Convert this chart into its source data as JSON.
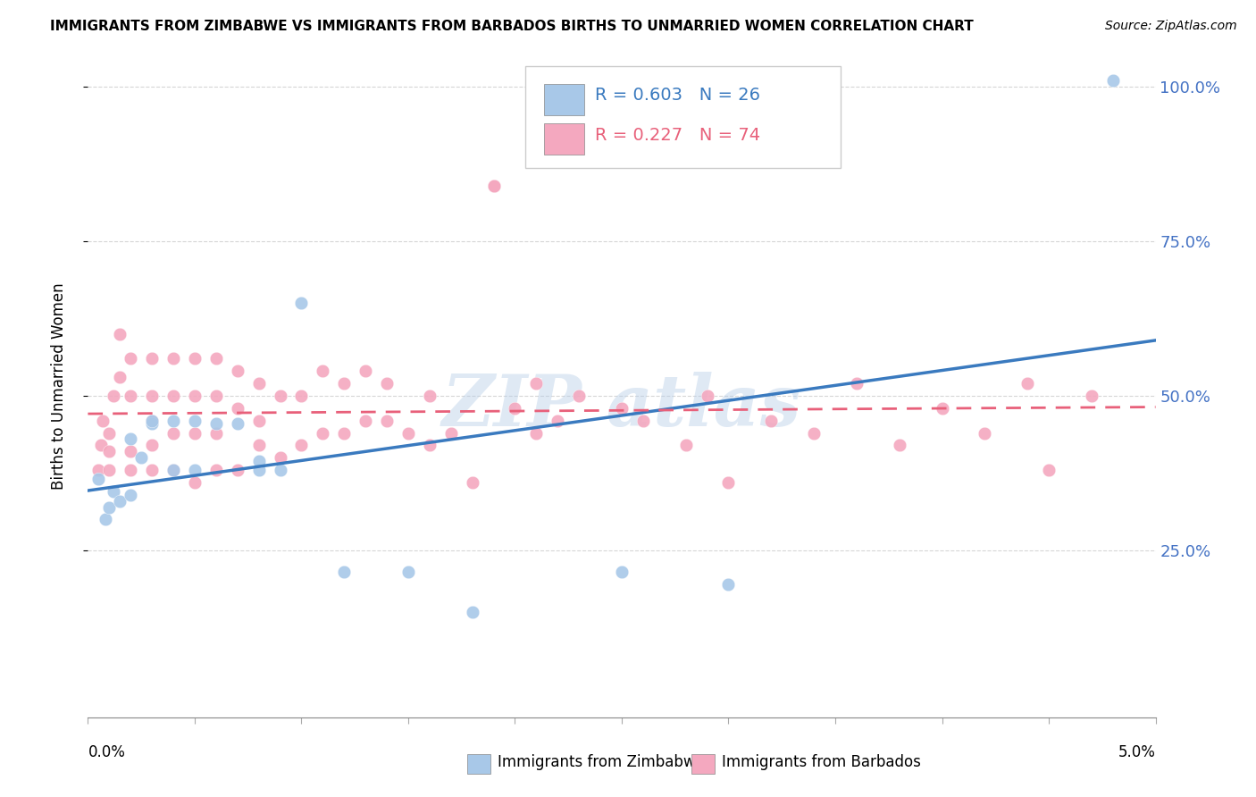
{
  "title": "IMMIGRANTS FROM ZIMBABWE VS IMMIGRANTS FROM BARBADOS BIRTHS TO UNMARRIED WOMEN CORRELATION CHART",
  "source": "Source: ZipAtlas.com",
  "ylabel": "Births to Unmarried Women",
  "r_zimbabwe": 0.603,
  "n_zimbabwe": 26,
  "r_barbados": 0.227,
  "n_barbados": 74,
  "color_zimbabwe": "#a8c8e8",
  "color_barbados": "#f4a8bf",
  "trendline_zimbabwe_color": "#3a7abf",
  "trendline_barbados_color": "#e8607a",
  "ytick_values": [
    0.25,
    0.5,
    0.75,
    1.0
  ],
  "xmin": 0.0,
  "xmax": 0.05,
  "ymin": 0.0,
  "ymax": 1.05,
  "zim_x": [
    0.0005,
    0.0008,
    0.001,
    0.0012,
    0.0015,
    0.002,
    0.002,
    0.0025,
    0.003,
    0.003,
    0.004,
    0.004,
    0.005,
    0.005,
    0.006,
    0.007,
    0.008,
    0.008,
    0.009,
    0.01,
    0.012,
    0.015,
    0.018,
    0.025,
    0.03,
    0.048
  ],
  "zim_y": [
    0.365,
    0.3,
    0.32,
    0.345,
    0.33,
    0.43,
    0.34,
    0.4,
    0.455,
    0.46,
    0.46,
    0.38,
    0.46,
    0.38,
    0.455,
    0.455,
    0.38,
    0.395,
    0.38,
    0.65,
    0.215,
    0.215,
    0.15,
    0.215,
    0.195,
    1.01
  ],
  "bar_x": [
    0.0005,
    0.0006,
    0.0007,
    0.001,
    0.001,
    0.001,
    0.0012,
    0.0015,
    0.0015,
    0.002,
    0.002,
    0.002,
    0.002,
    0.003,
    0.003,
    0.003,
    0.003,
    0.003,
    0.004,
    0.004,
    0.004,
    0.004,
    0.005,
    0.005,
    0.005,
    0.005,
    0.006,
    0.006,
    0.006,
    0.006,
    0.007,
    0.007,
    0.007,
    0.008,
    0.008,
    0.008,
    0.009,
    0.009,
    0.01,
    0.01,
    0.011,
    0.011,
    0.012,
    0.012,
    0.013,
    0.013,
    0.014,
    0.014,
    0.015,
    0.016,
    0.016,
    0.017,
    0.018,
    0.019,
    0.019,
    0.02,
    0.021,
    0.021,
    0.022,
    0.023,
    0.025,
    0.026,
    0.028,
    0.029,
    0.03,
    0.032,
    0.034,
    0.036,
    0.038,
    0.04,
    0.042,
    0.044,
    0.045,
    0.047
  ],
  "bar_y": [
    0.38,
    0.42,
    0.46,
    0.38,
    0.41,
    0.44,
    0.5,
    0.53,
    0.6,
    0.38,
    0.41,
    0.5,
    0.56,
    0.38,
    0.42,
    0.46,
    0.5,
    0.56,
    0.38,
    0.44,
    0.5,
    0.56,
    0.36,
    0.44,
    0.5,
    0.56,
    0.38,
    0.44,
    0.5,
    0.56,
    0.38,
    0.48,
    0.54,
    0.42,
    0.46,
    0.52,
    0.4,
    0.5,
    0.42,
    0.5,
    0.44,
    0.54,
    0.44,
    0.52,
    0.46,
    0.54,
    0.46,
    0.52,
    0.44,
    0.5,
    0.42,
    0.44,
    0.36,
    0.84,
    0.84,
    0.48,
    0.44,
    0.52,
    0.46,
    0.5,
    0.48,
    0.46,
    0.42,
    0.5,
    0.36,
    0.46,
    0.44,
    0.52,
    0.42,
    0.48,
    0.44,
    0.52,
    0.38,
    0.5
  ]
}
